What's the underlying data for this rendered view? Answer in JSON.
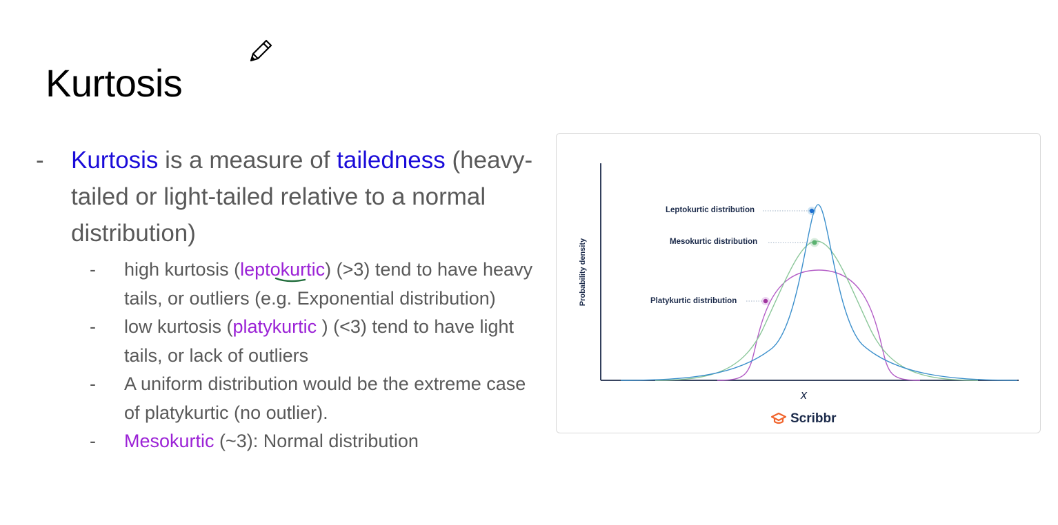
{
  "slide": {
    "title": "Kurtosis"
  },
  "bullets": {
    "main": {
      "term": "Kurtosis",
      "text_mid": " is a measure of ",
      "term2": "tailedness",
      "text_rest": " (heavy-tailed or light-tailed relative to a normal distribution)"
    },
    "sub": [
      {
        "before": "high kurtosis (",
        "term": "leptokurtic",
        "after": ") (>3) tend to have heavy tails, or outliers (e.g. Exponential distribution)"
      },
      {
        "before": "low kurtosis (",
        "term": "platykurtic",
        "after": " ) (<3) tend to have light tails, or lack of outliers"
      },
      {
        "before": "A uniform distribution would be the extreme case of platykurtic (no outlier).",
        "term": "",
        "after": ""
      },
      {
        "before": "",
        "term": "Mesokurtic",
        "after": " (~3): Normal distribution"
      }
    ],
    "dash": "-"
  },
  "figure": {
    "ylabel": "Probability density",
    "xlabel": "x",
    "brand": "Scribbr",
    "labels": {
      "lepto": "Leptokurtic distribution",
      "meso": "Mesokurtic distribution",
      "platy": "Platykurtic distribution"
    },
    "colors": {
      "lepto": "#3b8fcc",
      "meso": "#8cc79a",
      "platy": "#b35cc6",
      "axis": "#1b2a4a",
      "brand_accent": "#f0642c"
    }
  },
  "icons": {
    "pencil": "pencil-icon",
    "brand": "graduation-cap-icon"
  }
}
